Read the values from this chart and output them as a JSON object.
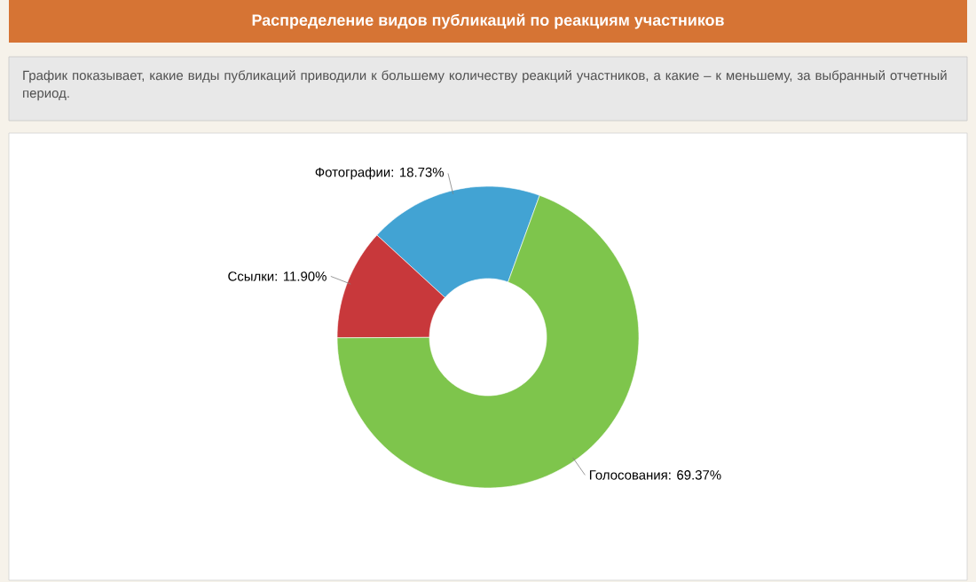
{
  "chart_data": {
    "type": "donut",
    "title": "Распределение видов публикаций по реакциям участников",
    "subtitle": "График показывает, какие виды публикаций приводили к большему количеству реакций участников, а какие – к меньшему, за выбранный отчетный период.",
    "categories": [
      "Фотографии",
      "Ссылки",
      "Голосования"
    ],
    "values": [
      18.73,
      11.9,
      69.37
    ],
    "value_labels": [
      ": 18.73%",
      ": 11.90%",
      ": 69.37%"
    ],
    "colors": [
      "#42a3d3",
      "#c8383b",
      "#7ec54c"
    ]
  }
}
